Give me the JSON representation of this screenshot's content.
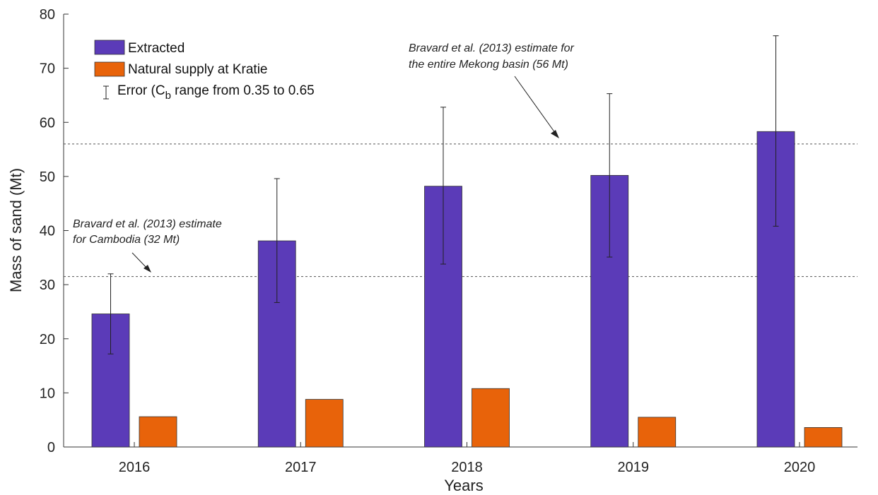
{
  "chart_data": {
    "type": "bar",
    "categories": [
      "2016",
      "2017",
      "2018",
      "2019",
      "2020"
    ],
    "series": [
      {
        "name": "Extracted",
        "values": [
          24.6,
          38.1,
          48.2,
          50.2,
          58.3
        ],
        "error_low": [
          17.2,
          26.7,
          33.8,
          35.1,
          40.8
        ],
        "error_high": [
          32.0,
          49.6,
          62.8,
          65.3,
          76.0
        ],
        "color": "#5b3bb8"
      },
      {
        "name": "Natural supply at Kratie",
        "values": [
          5.6,
          8.8,
          10.8,
          5.5,
          3.6
        ],
        "color": "#e8630a"
      }
    ],
    "error_legend": {
      "prefix": "Error (C",
      "subscript": "b",
      "suffix": " range from 0.35 to 0.65"
    },
    "xlabel": "Years",
    "ylabel": "Mass of sand (Mt)",
    "ylim": [
      0,
      80
    ],
    "yticks": [
      "0",
      "10",
      "20",
      "30",
      "40",
      "50",
      "60",
      "70",
      "80"
    ],
    "reference_lines": [
      {
        "value": 56,
        "line1": "Bravard et al. (2013) estimate for",
        "line2": "the entire Mekong basin (56 Mt)"
      },
      {
        "value": 31.5,
        "line1": "Bravard et al. (2013) estimate",
        "line2": "for Cambodia (32 Mt)"
      }
    ],
    "grid": false,
    "legend_position": "top-left"
  }
}
